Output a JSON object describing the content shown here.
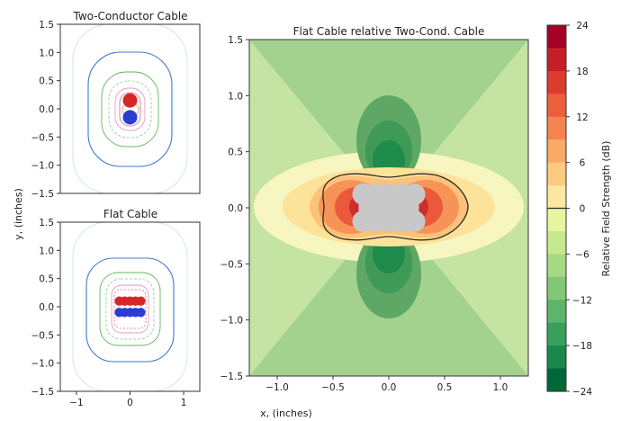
{
  "chart_data": [
    {
      "type": "contour",
      "title": "Two-Conductor Cable",
      "xlim": [
        -1.3,
        1.3
      ],
      "ylim": [
        -1.5,
        1.5
      ],
      "yticks": [
        -1.5,
        -1.0,
        -0.5,
        0.0,
        0.5,
        1.0,
        1.5
      ],
      "conductors": [
        {
          "x": 0.0,
          "y": 0.15,
          "color": "#d62728"
        },
        {
          "x": 0.0,
          "y": -0.15,
          "color": "#2a3bd6"
        }
      ]
    },
    {
      "type": "contour",
      "title": "Flat Cable",
      "xlim": [
        -1.3,
        1.3
      ],
      "ylim": [
        -1.5,
        1.5
      ],
      "xticks": [
        -1,
        0,
        1
      ],
      "yticks": [
        -1.5,
        -1.0,
        -0.5,
        0.0,
        0.5,
        1.0,
        1.5
      ],
      "conductors_top_y": 0.1,
      "conductors_bottom_y": -0.1,
      "conductors_x": [
        -0.2,
        -0.1,
        0.0,
        0.1,
        0.2
      ],
      "top_color": "#d62728",
      "bottom_color": "#2a3bd6"
    },
    {
      "type": "heatmap",
      "title": "Flat Cable relative Two-Cond. Cable",
      "xlim": [
        -1.25,
        1.25
      ],
      "ylim": [
        -1.5,
        1.5
      ],
      "xticks": [
        -1.0,
        -0.5,
        0.0,
        0.5,
        1.0
      ],
      "yticks": [
        -1.5,
        -1.0,
        -0.5,
        0.0,
        0.5,
        1.0,
        1.5
      ],
      "colorbar": {
        "label": "Relative Field Strength (dB)",
        "min": -24,
        "max": 24,
        "ticks": [
          24,
          18,
          12,
          6,
          0,
          -6,
          -12,
          -18,
          -24
        ]
      }
    }
  ],
  "labels": {
    "ylabel": "y, (inches)",
    "xlabel": "x, (inches)"
  }
}
